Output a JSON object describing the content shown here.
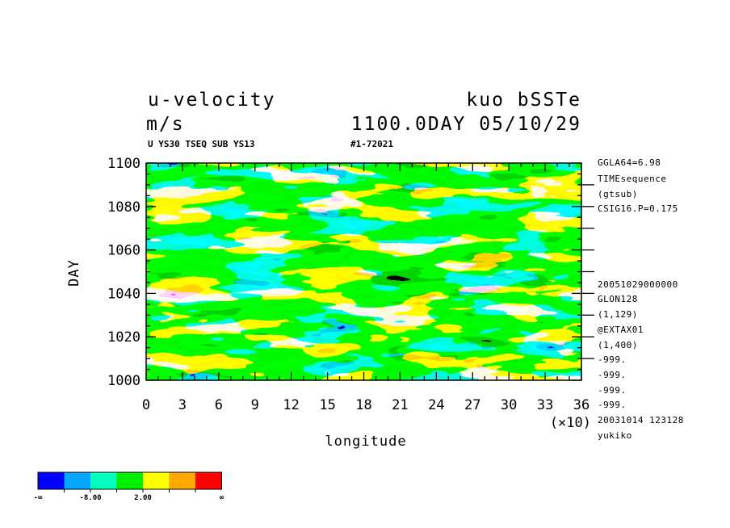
{
  "chart_data": {
    "type": "heatmap",
    "title": "u-velocity",
    "title_right": "kuo bSSTe",
    "units": "m/s",
    "time_label": "1100.0DAY 05/10/29",
    "subtitle_left": "U YS30 TSEQ SUB YS13",
    "subtitle_right": "#1-72021",
    "xlabel": "longitude",
    "ylabel": "DAY",
    "x_multiplier": "(×10)",
    "xlim": [
      0,
      36
    ],
    "ylim": [
      1000,
      1100
    ],
    "x_ticks": [
      "0",
      "3",
      "6",
      "9",
      "12",
      "15",
      "18",
      "21",
      "24",
      "27",
      "30",
      "33",
      "36"
    ],
    "y_ticks": [
      "1000",
      "1020",
      "1040",
      "1060",
      "1080",
      "1100"
    ],
    "grid": false,
    "side_info": [
      "GGLA64=6.98",
      "TIMEsequence",
      "(gtsub)",
      "CSIG16.P=0.175",
      "20051029000000",
      "GLON128",
      "(1,129)",
      "@EXTAX01",
      "(1,400)",
      "-999.",
      "-999.",
      "-999.",
      "-999.",
      "20031014 123128",
      "yukiko"
    ],
    "legend": {
      "colors": [
        "#0000ff",
        "#00a8ff",
        "#00ffbe",
        "#00f000",
        "#ffff00",
        "#ffa800",
        "#ff0000"
      ],
      "labels": [
        "-∞",
        "-8.00",
        "2.00",
        "∞"
      ]
    }
  }
}
